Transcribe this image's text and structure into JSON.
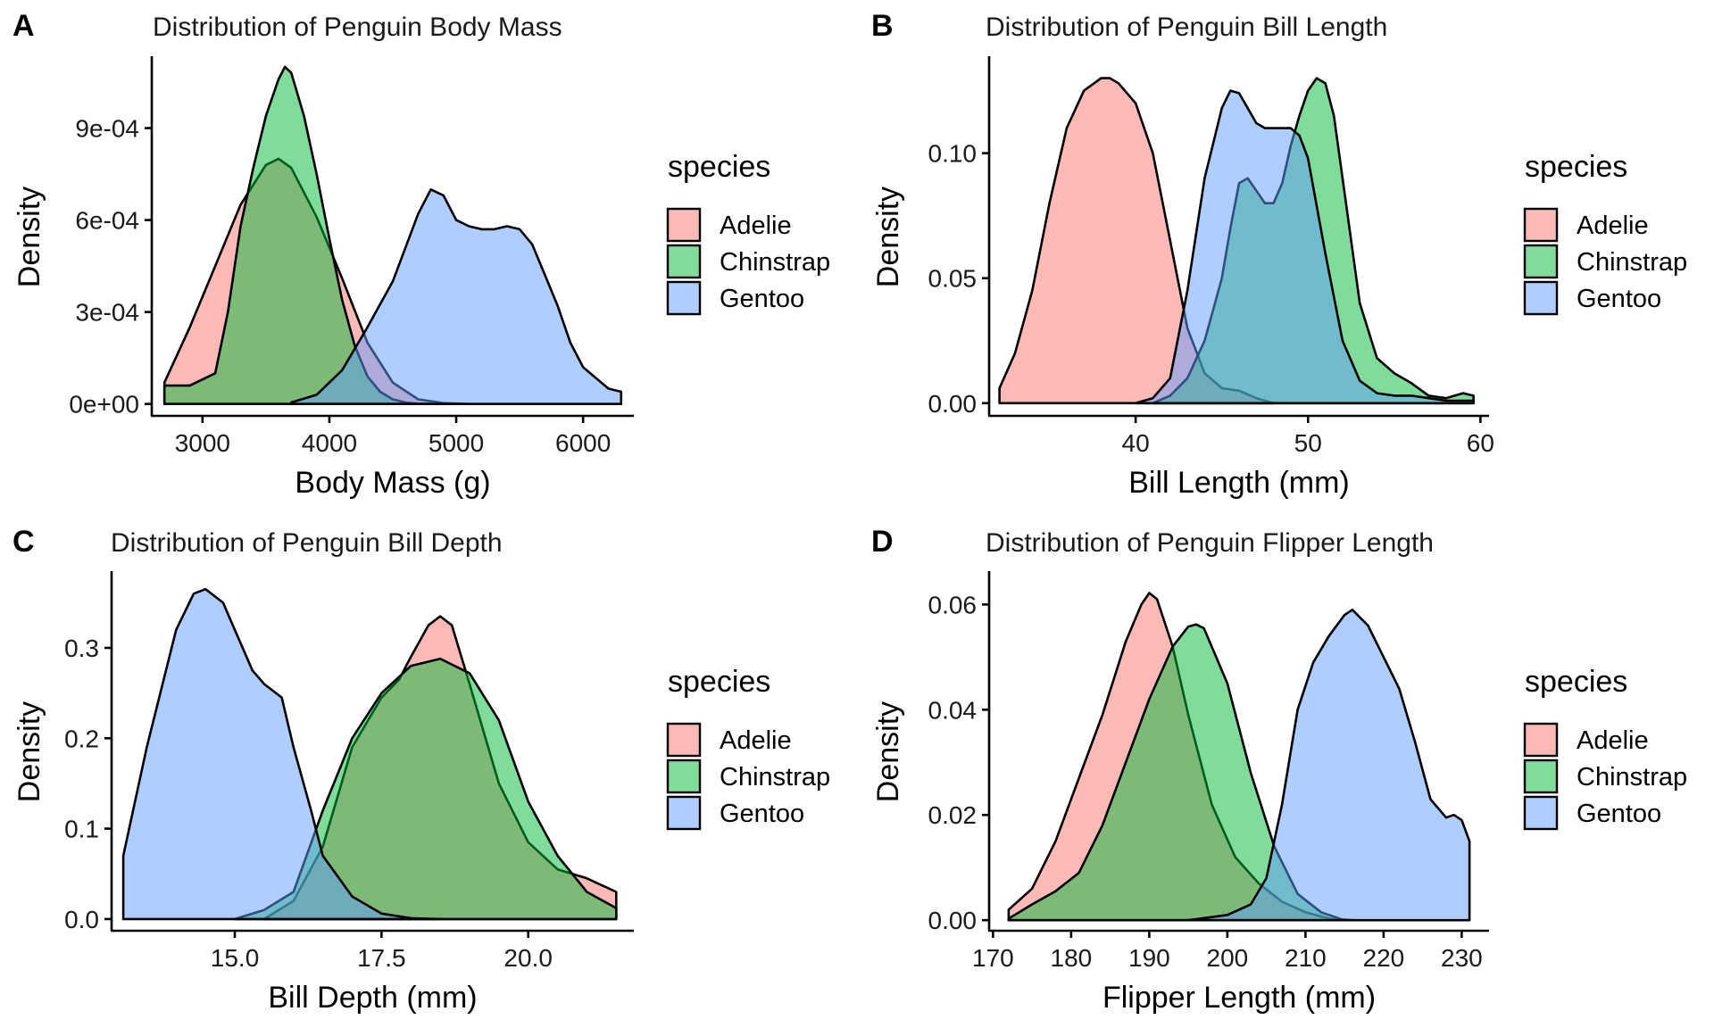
{
  "legend": {
    "title": "species",
    "items": [
      {
        "name": "Adelie",
        "color": "#F8766D"
      },
      {
        "name": "Chinstrap",
        "color": "#00BA38"
      },
      {
        "name": "Gentoo",
        "color": "#619CFF"
      }
    ]
  },
  "chart_data": [
    {
      "tag": "A",
      "type": "area",
      "title": "Distribution of Penguin Body Mass",
      "xlabel": "Body Mass (g)",
      "ylabel": "Density",
      "xlim": [
        2600,
        6400
      ],
      "ylim": [
        -3e-05,
        0.00112
      ],
      "xticks": [
        3000,
        4000,
        5000,
        6000
      ],
      "xtick_labels": [
        "3000",
        "4000",
        "5000",
        "6000"
      ],
      "yticks": [
        0,
        0.0003,
        0.0006,
        0.0009
      ],
      "ytick_labels": [
        "0e+00",
        "3e-04",
        "6e-04",
        "9e-04"
      ],
      "grid": false,
      "legend_position": "right",
      "series": [
        {
          "name": "Adelie",
          "x": [
            2700,
            2900,
            3100,
            3300,
            3500,
            3600,
            3700,
            3900,
            4100,
            4300,
            4500,
            4700,
            4900,
            5100
          ],
          "y": [
            7e-05,
            0.00025,
            0.00045,
            0.00065,
            0.00078,
            0.0008,
            0.00077,
            0.00061,
            0.00041,
            0.0002,
            7e-05,
            1.5e-05,
            3e-06,
            0
          ]
        },
        {
          "name": "Chinstrap",
          "x": [
            2700,
            2900,
            3100,
            3200,
            3300,
            3400,
            3500,
            3600,
            3650,
            3700,
            3800,
            3900,
            4000,
            4100,
            4200,
            4300,
            4400,
            4500,
            4600,
            4700,
            4800
          ],
          "y": [
            6e-05,
            6e-05,
            0.0001,
            0.0003,
            0.00058,
            0.00077,
            0.00094,
            0.00106,
            0.0011,
            0.00108,
            0.00094,
            0.00075,
            0.00054,
            0.00034,
            0.00019,
            9e-05,
            4e-05,
            1.5e-05,
            5e-06,
            1e-06,
            0
          ]
        },
        {
          "name": "Gentoo",
          "x": [
            3700,
            3900,
            4100,
            4300,
            4500,
            4700,
            4800,
            4900,
            5000,
            5100,
            5200,
            5300,
            5400,
            5500,
            5600,
            5700,
            5800,
            5900,
            6000,
            6200,
            6300
          ],
          "y": [
            5e-06,
            3e-05,
            0.00011,
            0.00025,
            0.0004,
            0.00062,
            0.0007,
            0.00068,
            0.0006,
            0.00058,
            0.00057,
            0.00057,
            0.00058,
            0.00057,
            0.00052,
            0.00042,
            0.00032,
            0.0002,
            0.00012,
            5e-05,
            4e-05
          ]
        }
      ]
    },
    {
      "tag": "B",
      "type": "area",
      "title": "Distribution of Penguin Bill Length",
      "xlabel": "Bill Length (mm)",
      "ylabel": "Density",
      "xlim": [
        31.5,
        60.5
      ],
      "ylim": [
        -0.004,
        0.137
      ],
      "xticks": [
        40,
        50,
        60
      ],
      "xtick_labels": [
        "40",
        "50",
        "60"
      ],
      "yticks": [
        0,
        0.05,
        0.1
      ],
      "ytick_labels": [
        "0.00",
        "0.05",
        "0.10"
      ],
      "grid": false,
      "legend_position": "right",
      "series": [
        {
          "name": "Adelie",
          "x": [
            32.1,
            33,
            34,
            35,
            36,
            37,
            38,
            38.5,
            39,
            40,
            41,
            42,
            43,
            44,
            45,
            46,
            47,
            48
          ],
          "y": [
            0.006,
            0.02,
            0.045,
            0.08,
            0.11,
            0.125,
            0.13,
            0.13,
            0.128,
            0.12,
            0.1,
            0.065,
            0.03,
            0.012,
            0.006,
            0.005,
            0.002,
            0
          ]
        },
        {
          "name": "Chinstrap",
          "x": [
            41,
            42,
            43,
            44,
            45,
            45.5,
            46,
            46.5,
            47,
            47.5,
            48,
            48.5,
            49,
            49.5,
            50,
            50.5,
            51,
            51.5,
            52,
            53,
            54,
            55,
            56,
            57,
            58,
            59,
            59.6
          ],
          "y": [
            0,
            0.003,
            0.01,
            0.025,
            0.05,
            0.07,
            0.088,
            0.09,
            0.085,
            0.08,
            0.08,
            0.088,
            0.103,
            0.115,
            0.125,
            0.13,
            0.128,
            0.115,
            0.09,
            0.04,
            0.018,
            0.012,
            0.008,
            0.003,
            0.002,
            0.004,
            0.003
          ]
        },
        {
          "name": "Gentoo",
          "x": [
            40,
            41,
            42,
            43,
            44,
            45,
            45.5,
            46,
            46.5,
            47,
            47.5,
            48,
            49,
            49.5,
            50,
            51,
            52,
            53,
            54,
            55,
            56,
            57,
            58,
            59.6
          ],
          "y": [
            0,
            0.002,
            0.01,
            0.045,
            0.09,
            0.118,
            0.125,
            0.124,
            0.118,
            0.112,
            0.11,
            0.11,
            0.11,
            0.107,
            0.098,
            0.06,
            0.025,
            0.009,
            0.004,
            0.003,
            0.003,
            0.002,
            0.001,
            0.001
          ]
        }
      ]
    },
    {
      "tag": "C",
      "type": "area",
      "title": "Distribution of Penguin Bill Depth",
      "xlabel": "Bill Depth (mm)",
      "ylabel": "Density",
      "xlim": [
        12.9,
        21.8
      ],
      "ylim": [
        -0.01,
        0.38
      ],
      "xticks": [
        15,
        17.5,
        20
      ],
      "xtick_labels": [
        "15.0",
        "17.5",
        "20.0"
      ],
      "yticks": [
        0,
        0.1,
        0.2,
        0.3
      ],
      "ytick_labels": [
        "0.0",
        "0.1",
        "0.2",
        "0.3"
      ],
      "grid": false,
      "legend_position": "right",
      "series": [
        {
          "name": "Adelie",
          "x": [
            15.5,
            16,
            16.5,
            17,
            17.5,
            17.8,
            18,
            18.3,
            18.5,
            18.7,
            19,
            19.5,
            20,
            20.5,
            21,
            21.5
          ],
          "y": [
            0,
            0.02,
            0.08,
            0.19,
            0.245,
            0.265,
            0.29,
            0.325,
            0.335,
            0.325,
            0.26,
            0.15,
            0.085,
            0.055,
            0.045,
            0.03
          ]
        },
        {
          "name": "Chinstrap",
          "x": [
            15,
            15.5,
            16,
            16.5,
            17,
            17.5,
            18,
            18.5,
            19,
            19.5,
            20,
            20.5,
            21,
            21.5
          ],
          "y": [
            0,
            0.01,
            0.03,
            0.12,
            0.2,
            0.25,
            0.28,
            0.288,
            0.272,
            0.22,
            0.13,
            0.07,
            0.03,
            0.012
          ]
        },
        {
          "name": "Gentoo",
          "x": [
            13.1,
            13.5,
            14,
            14.3,
            14.5,
            14.8,
            15,
            15.3,
            15.5,
            15.8,
            16,
            16.3,
            16.5,
            17,
            17.5,
            18,
            18.5
          ],
          "y": [
            0.07,
            0.19,
            0.32,
            0.36,
            0.365,
            0.35,
            0.32,
            0.275,
            0.26,
            0.245,
            0.19,
            0.12,
            0.07,
            0.025,
            0.006,
            0.001,
            0
          ]
        }
      ]
    },
    {
      "tag": "D",
      "type": "area",
      "title": "Distribution of Penguin Flipper Length",
      "xlabel": "Flipper Length (mm)",
      "ylabel": "Density",
      "xlim": [
        169.5,
        233.5
      ],
      "ylim": [
        -0.0015,
        0.0655
      ],
      "xticks": [
        170,
        180,
        190,
        200,
        210,
        220,
        230
      ],
      "xtick_labels": [
        "170",
        "180",
        "190",
        "200",
        "210",
        "220",
        "230"
      ],
      "yticks": [
        0,
        0.02,
        0.04,
        0.06
      ],
      "ytick_labels": [
        "0.00",
        "0.02",
        "0.04",
        "0.06"
      ],
      "grid": false,
      "legend_position": "right",
      "series": [
        {
          "name": "Adelie",
          "x": [
            172,
            175,
            178,
            181,
            184,
            187,
            189,
            190,
            191,
            193,
            195,
            198,
            201,
            204,
            207,
            210,
            213,
            216
          ],
          "y": [
            0.002,
            0.006,
            0.015,
            0.027,
            0.039,
            0.053,
            0.06,
            0.0622,
            0.061,
            0.052,
            0.039,
            0.022,
            0.012,
            0.007,
            0.0035,
            0.0015,
            0.0003,
            0
          ]
        },
        {
          "name": "Chinstrap",
          "x": [
            172,
            175,
            178,
            181,
            184,
            187,
            190,
            193,
            195,
            196,
            197,
            200,
            203,
            206,
            209,
            212,
            215
          ],
          "y": [
            0.0003,
            0.003,
            0.0055,
            0.009,
            0.018,
            0.03,
            0.042,
            0.052,
            0.0558,
            0.0562,
            0.0555,
            0.045,
            0.028,
            0.014,
            0.005,
            0.0015,
            0
          ]
        },
        {
          "name": "Gentoo",
          "x": [
            195,
            200,
            203,
            205,
            207,
            209,
            211,
            213,
            215,
            216,
            218,
            220,
            222,
            224,
            226,
            228,
            229,
            230,
            231
          ],
          "y": [
            0,
            0.001,
            0.003,
            0.008,
            0.022,
            0.04,
            0.049,
            0.054,
            0.058,
            0.059,
            0.056,
            0.05,
            0.044,
            0.034,
            0.023,
            0.0195,
            0.02,
            0.019,
            0.015
          ]
        }
      ]
    }
  ]
}
